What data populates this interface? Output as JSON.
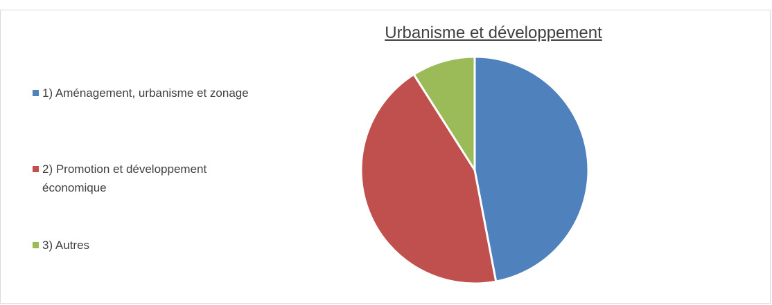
{
  "chart_data": {
    "type": "pie",
    "title": "Urbanisme et développement",
    "categories": [
      "1) Aménagement, urbanisme et zonage",
      "2) Promotion et développement économique",
      "3) Autres"
    ],
    "values": [
      47,
      44,
      9
    ],
    "colors": [
      "#4f81bd",
      "#c0504d",
      "#9bbb59"
    ],
    "legend": "left"
  }
}
